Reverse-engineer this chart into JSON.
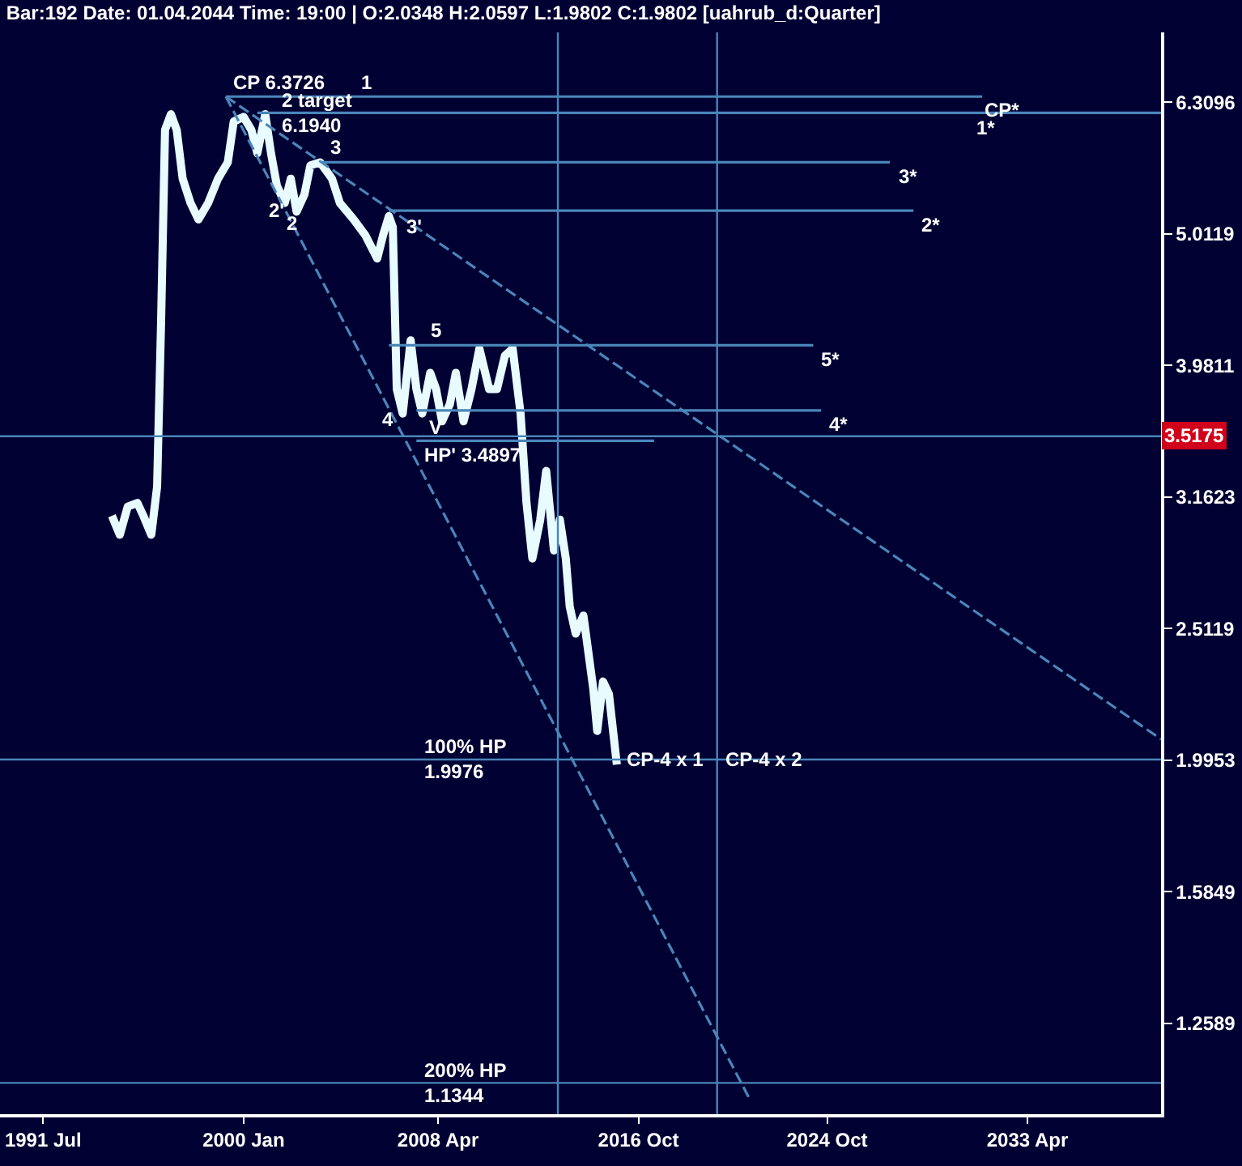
{
  "chart_data": {
    "type": "line",
    "title": "Bar:192 Date: 01.04.2044 Time: 19:00 | O:2.0348 H:2.0597 L:1.9802 C:1.9802 [uahrub_d:Quarter]",
    "series": [
      {
        "color": "#e8fbff",
        "line_style": "solid",
        "x": [
          "1994-06",
          "1994-10",
          "1995-02",
          "1995-07",
          "1995-10",
          "1996-02",
          "1996-05",
          "1996-07",
          "1996-09",
          "1996-12",
          "1997-03",
          "1997-06",
          "1997-10",
          "1998-02",
          "1998-07",
          "1998-12",
          "1999-05",
          "1999-08",
          "2000-01",
          "2000-05",
          "2000-08",
          "2000-12",
          "2001-03",
          "2001-06",
          "2001-10",
          "2002-01",
          "2002-04",
          "2002-08",
          "2002-11",
          "2003-04",
          "2003-10",
          "2004-02",
          "2004-09",
          "2005-03",
          "2005-09",
          "2005-12",
          "2006-03",
          "2006-05",
          "2006-07",
          "2006-10",
          "2007-02",
          "2007-05",
          "2007-08",
          "2007-12",
          "2008-03",
          "2008-06",
          "2008-10",
          "2009-01",
          "2009-05",
          "2009-09",
          "2010-01",
          "2010-06",
          "2010-10",
          "2011-02",
          "2011-06",
          "2011-10",
          "2012-01",
          "2012-04",
          "2012-08",
          "2012-11",
          "2013-03",
          "2013-06",
          "2013-09",
          "2013-11",
          "2014-02",
          "2014-06",
          "2014-11",
          "2015-01",
          "2015-04",
          "2015-07",
          "2015-11"
        ],
        "values": [
          3.06,
          2.96,
          3.11,
          3.13,
          3.06,
          2.96,
          3.22,
          4.28,
          6.01,
          6.18,
          6.01,
          5.52,
          5.29,
          5.14,
          5.29,
          5.52,
          5.68,
          6.1,
          6.15,
          6.01,
          5.77,
          6.18,
          5.77,
          5.45,
          5.29,
          5.52,
          5.21,
          5.37,
          5.65,
          5.68,
          5.52,
          5.29,
          5.14,
          5.0,
          4.8,
          5.0,
          5.17,
          5.07,
          3.82,
          3.66,
          4.16,
          3.82,
          3.66,
          3.93,
          3.82,
          3.61,
          3.72,
          3.93,
          3.61,
          3.82,
          4.1,
          3.82,
          3.82,
          4.05,
          4.1,
          3.66,
          3.13,
          2.84,
          3.04,
          3.31,
          2.88,
          3.04,
          2.84,
          2.61,
          2.49,
          2.57,
          2.26,
          2.1,
          2.29,
          2.24,
          1.9802
        ]
      },
      {
        "color": "#4a86b8",
        "line_style": "dashed",
        "x": [
          "1999-04",
          "2038-12"
        ],
        "values": [
          6.3726,
          2.07
        ]
      },
      {
        "color": "#4a86b8",
        "line_style": "dashed",
        "x": [
          "1999-04",
          "2021-07"
        ],
        "values": [
          6.3726,
          1.1
        ]
      },
      {
        "color": "#4a86b8",
        "line_style": "solid",
        "x": [
          "1999-04",
          "2031-05"
        ],
        "values": [
          6.3726,
          6.3726
        ]
      },
      {
        "color": "#4a86b8",
        "line_style": "solid",
        "x": [
          "2000-08",
          "2038-12"
        ],
        "values": [
          6.194,
          6.194
        ]
      },
      {
        "color": "#4a86b8",
        "line_style": "solid",
        "x": [
          "2003-05",
          "2027-06"
        ],
        "values": [
          5.68,
          5.68
        ]
      },
      {
        "color": "#4a86b8",
        "line_style": "solid",
        "x": [
          "2006-03",
          "2028-06"
        ],
        "values": [
          5.22,
          5.22
        ]
      },
      {
        "color": "#4a86b8",
        "line_style": "solid",
        "x": [
          "2006-03",
          "2024-03"
        ],
        "values": [
          4.124,
          4.124
        ]
      },
      {
        "color": "#4a86b8",
        "line_style": "solid",
        "x": [
          "2007-05",
          "2024-07"
        ],
        "values": [
          3.68,
          3.68
        ]
      },
      {
        "color": "#4a86b8",
        "line_style": "solid",
        "x": [
          "2007-05",
          "2017-06"
        ],
        "values": [
          3.4897,
          3.4897
        ]
      }
    ],
    "ref_lines": [
      {
        "axis": "y",
        "value": 3.5175,
        "label": "3.5175",
        "color": "#4a86b8"
      },
      {
        "axis": "y",
        "value": 1.9976,
        "color": "#4a86b8"
      },
      {
        "axis": "y",
        "value": 1.1344,
        "color": "#4a86b8"
      },
      {
        "axis": "x",
        "value": "2013-05",
        "color": "#4a86b8"
      },
      {
        "axis": "x",
        "value": "2020-02",
        "color": "#4a86b8"
      }
    ],
    "annotations": [
      {
        "text": "CP 6.3726",
        "x": "1999-04",
        "y": 6.3726
      },
      {
        "text": "1",
        "x": "2004-09",
        "y": 6.3726
      },
      {
        "text": "2 target\n6.1940",
        "x": "2001-04",
        "y": 6.194
      },
      {
        "text": "3",
        "x": "2003-05",
        "y": 5.68
      },
      {
        "text": "2'",
        "x": "2001-06",
        "y": 5.22
      },
      {
        "text": "2",
        "x": "2002-02",
        "y": 5.11
      },
      {
        "text": "3'",
        "x": "2007-04",
        "y": 5.08
      },
      {
        "text": "5",
        "x": "2007-08",
        "y": 4.124
      },
      {
        "text": "4",
        "x": "2006-02",
        "y": 3.62
      },
      {
        "text": "V",
        "x": "2008-03",
        "y": 3.57
      },
      {
        "text": "HP' 3.4897",
        "x": "2007-05",
        "y": 3.4897
      },
      {
        "text": "100% HP\n1.9976",
        "x": "2007-05",
        "y": 1.9976
      },
      {
        "text": "CP-4 x 1",
        "x": "2015-12",
        "y": 1.9976
      },
      {
        "text": "CP-4 x 2",
        "x": "2020-02",
        "y": 1.9976
      },
      {
        "text": "200% HP\n1.1344",
        "x": "2007-05",
        "y": 1.1344
      },
      {
        "text": "CP*",
        "x": "2032-03",
        "y": 6.22
      },
      {
        "text": "1*",
        "x": "2030-10",
        "y": 6.194
      },
      {
        "text": "3*",
        "x": "2027-06",
        "y": 5.68
      },
      {
        "text": "2*",
        "x": "2028-06",
        "y": 5.22
      },
      {
        "text": "5*",
        "x": "2024-03",
        "y": 4.124
      },
      {
        "text": "4*",
        "x": "2024-07",
        "y": 3.68
      }
    ],
    "xlim": [
      "1989-09",
      "2038-12"
    ],
    "xticks": [
      {
        "value": "1991-07",
        "label": "1991 Jul"
      },
      {
        "value": "2000-01",
        "label": "2000 Jan"
      },
      {
        "value": "2008-04",
        "label": "2008 Apr"
      },
      {
        "value": "2016-10",
        "label": "2016 Oct"
      },
      {
        "value": "2024-10",
        "label": "2024 Oct"
      },
      {
        "value": "2033-04",
        "label": "2033 Apr"
      }
    ],
    "ylim": [
      1.074,
      7.13
    ],
    "yticks": [
      1.2589,
      1.5849,
      1.9953,
      2.5119,
      3.1623,
      3.9811,
      5.0119,
      6.3096
    ],
    "log": "y",
    "grid": false,
    "marker": "none"
  }
}
